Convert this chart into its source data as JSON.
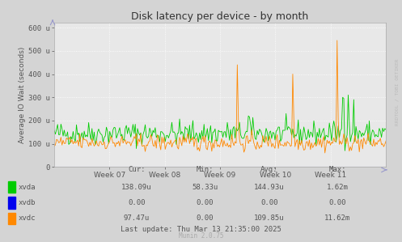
{
  "title": "Disk latency per device - by month",
  "ylabel": "Average IO Wait (seconds)",
  "background_color": "#d4d4d4",
  "plot_bg_color": "#e8e8e8",
  "grid_color": "#ffffff",
  "ytick_labels": [
    "0",
    "100 u",
    "200 u",
    "300 u",
    "400 u",
    "500 u",
    "600 u"
  ],
  "ytick_values": [
    0,
    100,
    200,
    300,
    400,
    500,
    600
  ],
  "ylim": [
    0,
    620
  ],
  "xtick_labels": [
    "Week 07",
    "Week 08",
    "Week 09",
    "Week 10",
    "Week 11"
  ],
  "xvda_color": "#00cc00",
  "xvdb_color": "#0000ee",
  "xvdc_color": "#ff8800",
  "legend_entries": [
    "xvda",
    "xvdb",
    "xvdc"
  ],
  "cur_label": "Cur:",
  "min_label": "Min:",
  "avg_label": "Avg:",
  "max_label": "Max:",
  "xvda_cur": "138.09u",
  "xvda_min": "58.33u",
  "xvda_avg": "144.93u",
  "xvda_max": "1.62m",
  "xvdb_cur": "0.00",
  "xvdb_min": "0.00",
  "xvdb_avg": "0.00",
  "xvdb_max": "0.00",
  "xvdc_cur": "97.47u",
  "xvdc_min": "0.00",
  "xvdc_avg": "109.85u",
  "xvdc_max": "11.62m",
  "last_update": "Last update: Thu Mar 13 21:35:00 2025",
  "munin_version": "Munin 2.0.75",
  "n_points": 300,
  "seed": 42
}
